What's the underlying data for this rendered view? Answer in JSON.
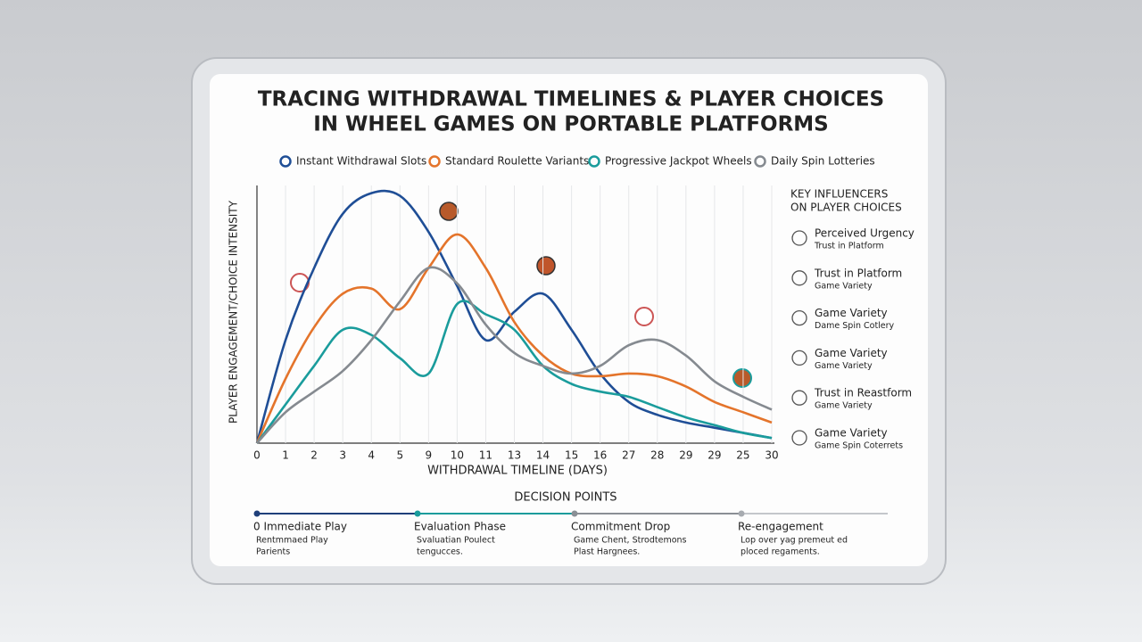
{
  "chart_data": {
    "type": "line",
    "title": [
      "TRACING WITHDRAWAL TIMELINES & PLAYER CHOICES",
      "IN WHEEL GAMES ON PORTABLE PLATFORMS"
    ],
    "y_label": "PLAYER ENGAGEMENT/CHOICE INTENSITY",
    "x_label": "WITHDRAWAL TIMELINE (DAYS)",
    "categories": [
      "0",
      "1",
      "2",
      "3",
      "4",
      "5",
      "9",
      "10",
      "11",
      "13",
      "14",
      "15",
      "16",
      "27",
      "28",
      "29",
      "29",
      "25",
      "30"
    ],
    "ylim": [
      0,
      100
    ],
    "series": [
      {
        "name": "Instant Withdrawal Slots",
        "color": "#1f4e96",
        "values": [
          0,
          40,
          68,
          89,
          97,
          96,
          82,
          61,
          40,
          51,
          58,
          44,
          27,
          16,
          11,
          8,
          6,
          4,
          2
        ]
      },
      {
        "name": "Standard Roulette Variants",
        "color": "#e4742b",
        "values": [
          0,
          25,
          45,
          58,
          60,
          52,
          68,
          81,
          68,
          47,
          34,
          27,
          26,
          27,
          26,
          22,
          16,
          12,
          8
        ]
      },
      {
        "name": "Progressive Jackpot Wheels",
        "color": "#1a9c9c",
        "values": [
          0,
          15,
          30,
          44,
          42,
          33,
          27,
          54,
          50,
          44,
          30,
          23,
          20,
          18,
          14,
          10,
          7,
          4,
          2
        ]
      },
      {
        "name": "Daily Spin Lotteries",
        "color": "#858a90",
        "values": [
          0,
          12,
          20,
          28,
          40,
          55,
          68,
          62,
          46,
          35,
          30,
          27,
          30,
          38,
          40,
          34,
          24,
          18,
          13
        ]
      }
    ]
  },
  "influencers": {
    "title": [
      "KEY INFLUENCERS",
      "ON PLAYER CHOICES"
    ],
    "items": [
      {
        "label": "Perceived Urgency",
        "sub": "Trust in Platform"
      },
      {
        "label": "Trust in Platform",
        "sub": "Game Variety"
      },
      {
        "label": "Game Variety",
        "sub": "Dame Spin Cotlery"
      },
      {
        "label": "Game Variety",
        "sub": "Game Variety"
      },
      {
        "label": "Trust in Reastform",
        "sub": "Game Variety"
      },
      {
        "label": "Game Variety",
        "sub": "Game Spin Coterrets"
      }
    ]
  },
  "decision_points": {
    "title": "DECISION POINTS",
    "items": [
      {
        "label": "0  Immediate Play",
        "desc": [
          "Rentmmaed Play",
          "Parients"
        ]
      },
      {
        "label": "Evaluation Phase",
        "desc": [
          "Svaluatian Poulect",
          "tengucces."
        ]
      },
      {
        "label": "Commitment Drop",
        "desc": [
          "Game Chent, Strodtemons",
          "Plast Hargnees."
        ]
      },
      {
        "label": "Re-engagement",
        "desc": [
          "Lop over yag premeut ed",
          "ploced regaments."
        ]
      }
    ]
  }
}
